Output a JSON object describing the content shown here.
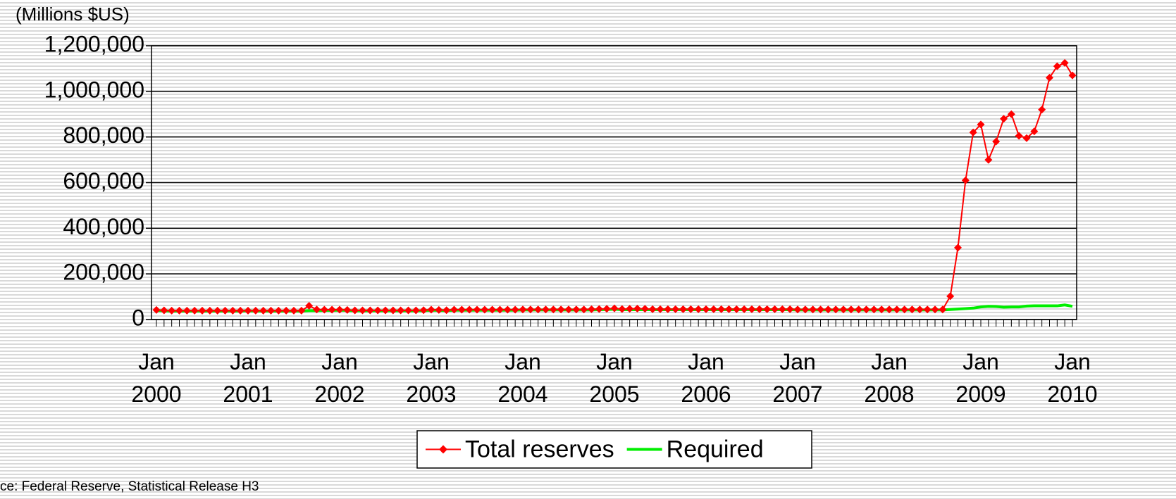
{
  "chart_data": {
    "type": "line",
    "y_label": "(Millions $US)",
    "source": "ce: Federal Reserve, Statistical Release H3",
    "categories": [
      "Jan\n2000",
      null,
      null,
      null,
      null,
      null,
      null,
      null,
      null,
      null,
      null,
      null,
      "Jan\n2001",
      null,
      null,
      null,
      null,
      null,
      null,
      null,
      null,
      null,
      null,
      null,
      "Jan\n2002",
      null,
      null,
      null,
      null,
      null,
      null,
      null,
      null,
      null,
      null,
      null,
      "Jan\n2003",
      null,
      null,
      null,
      null,
      null,
      null,
      null,
      null,
      null,
      null,
      null,
      "Jan\n2004",
      null,
      null,
      null,
      null,
      null,
      null,
      null,
      null,
      null,
      null,
      null,
      "Jan\n2005",
      null,
      null,
      null,
      null,
      null,
      null,
      null,
      null,
      null,
      null,
      null,
      "Jan\n2006",
      null,
      null,
      null,
      null,
      null,
      null,
      null,
      null,
      null,
      null,
      null,
      "Jan\n2007",
      null,
      null,
      null,
      null,
      null,
      null,
      null,
      null,
      null,
      null,
      null,
      "Jan\n2008",
      null,
      null,
      null,
      null,
      null,
      null,
      null,
      null,
      null,
      null,
      null,
      "Jan\n2009",
      null,
      null,
      null,
      null,
      null,
      null,
      null,
      null,
      null,
      null,
      null,
      "Jan\n2010"
    ],
    "series": [
      {
        "name": "Total reserves",
        "color": "#ff0000",
        "marker": "diamond",
        "values": [
          42000,
          40000,
          39000,
          39000,
          39000,
          39000,
          39000,
          39000,
          39000,
          39000,
          39000,
          39000,
          39000,
          39000,
          39000,
          39000,
          39000,
          39000,
          39000,
          39000,
          60000,
          44000,
          43000,
          43000,
          43000,
          42000,
          40000,
          40000,
          40000,
          40000,
          40000,
          40000,
          40000,
          40000,
          40000,
          41000,
          43000,
          42000,
          41000,
          43000,
          43000,
          43000,
          43000,
          43000,
          43000,
          43000,
          43000,
          43000,
          44000,
          44000,
          44000,
          44000,
          44000,
          44000,
          44000,
          44000,
          44000,
          45000,
          46000,
          47000,
          49000,
          46000,
          47000,
          48000,
          47000,
          45000,
          45000,
          45000,
          45000,
          45000,
          45000,
          45000,
          45000,
          45000,
          45000,
          45000,
          45000,
          45000,
          45000,
          45000,
          45000,
          45000,
          45000,
          45000,
          44000,
          44000,
          44000,
          44000,
          44000,
          44000,
          44000,
          44000,
          44000,
          44000,
          44000,
          44000,
          44000,
          44000,
          44000,
          44000,
          44000,
          44000,
          44000,
          44000,
          102000,
          315000,
          610000,
          820000,
          855000,
          700000,
          780000,
          880000,
          900000,
          805000,
          795000,
          825000,
          920000,
          1060000,
          1110000,
          1125000,
          1070000
        ]
      },
      {
        "name": "Required",
        "color": "#00ee00",
        "marker": "none",
        "values": [
          40000,
          38000,
          37000,
          37000,
          37000,
          37000,
          37000,
          37000,
          37000,
          37000,
          37000,
          37000,
          38000,
          37000,
          37000,
          37000,
          37000,
          37000,
          37000,
          37000,
          39000,
          39000,
          40000,
          40000,
          41000,
          40000,
          38000,
          38000,
          38000,
          38000,
          38000,
          38000,
          38000,
          38000,
          38000,
          39000,
          41000,
          40000,
          39000,
          41000,
          41000,
          41000,
          41000,
          41000,
          41000,
          41000,
          41000,
          41000,
          42000,
          42000,
          42000,
          42000,
          42000,
          42000,
          42000,
          42000,
          42000,
          42000,
          43000,
          44000,
          45000,
          43000,
          43000,
          43000,
          43000,
          43000,
          43000,
          43000,
          43000,
          43000,
          43000,
          43000,
          43000,
          43000,
          43000,
          43000,
          43000,
          43000,
          43000,
          43000,
          43000,
          43000,
          43000,
          43000,
          42000,
          42000,
          42000,
          42000,
          42000,
          42000,
          42000,
          42000,
          42000,
          42000,
          42000,
          42000,
          42000,
          42000,
          42000,
          42000,
          42000,
          42000,
          42000,
          42000,
          44000,
          46000,
          48000,
          50000,
          55000,
          58000,
          57000,
          54000,
          55000,
          55000,
          59000,
          60000,
          60000,
          60000,
          60000,
          64000,
          58000
        ]
      }
    ],
    "ylim": [
      0,
      1200000
    ],
    "yticks": [
      0,
      {
        "value": 200000,
        "label": "200,000"
      },
      {
        "value": 400000,
        "label": "400,000"
      },
      {
        "value": 600000,
        "label": "600,000"
      },
      {
        "value": 800000,
        "label": "800,000"
      },
      {
        "value": 1000000,
        "label": "1,000,000"
      },
      {
        "value": 1200000,
        "label": "1,200,000"
      }
    ],
    "grid": true,
    "legend": "bottom"
  }
}
